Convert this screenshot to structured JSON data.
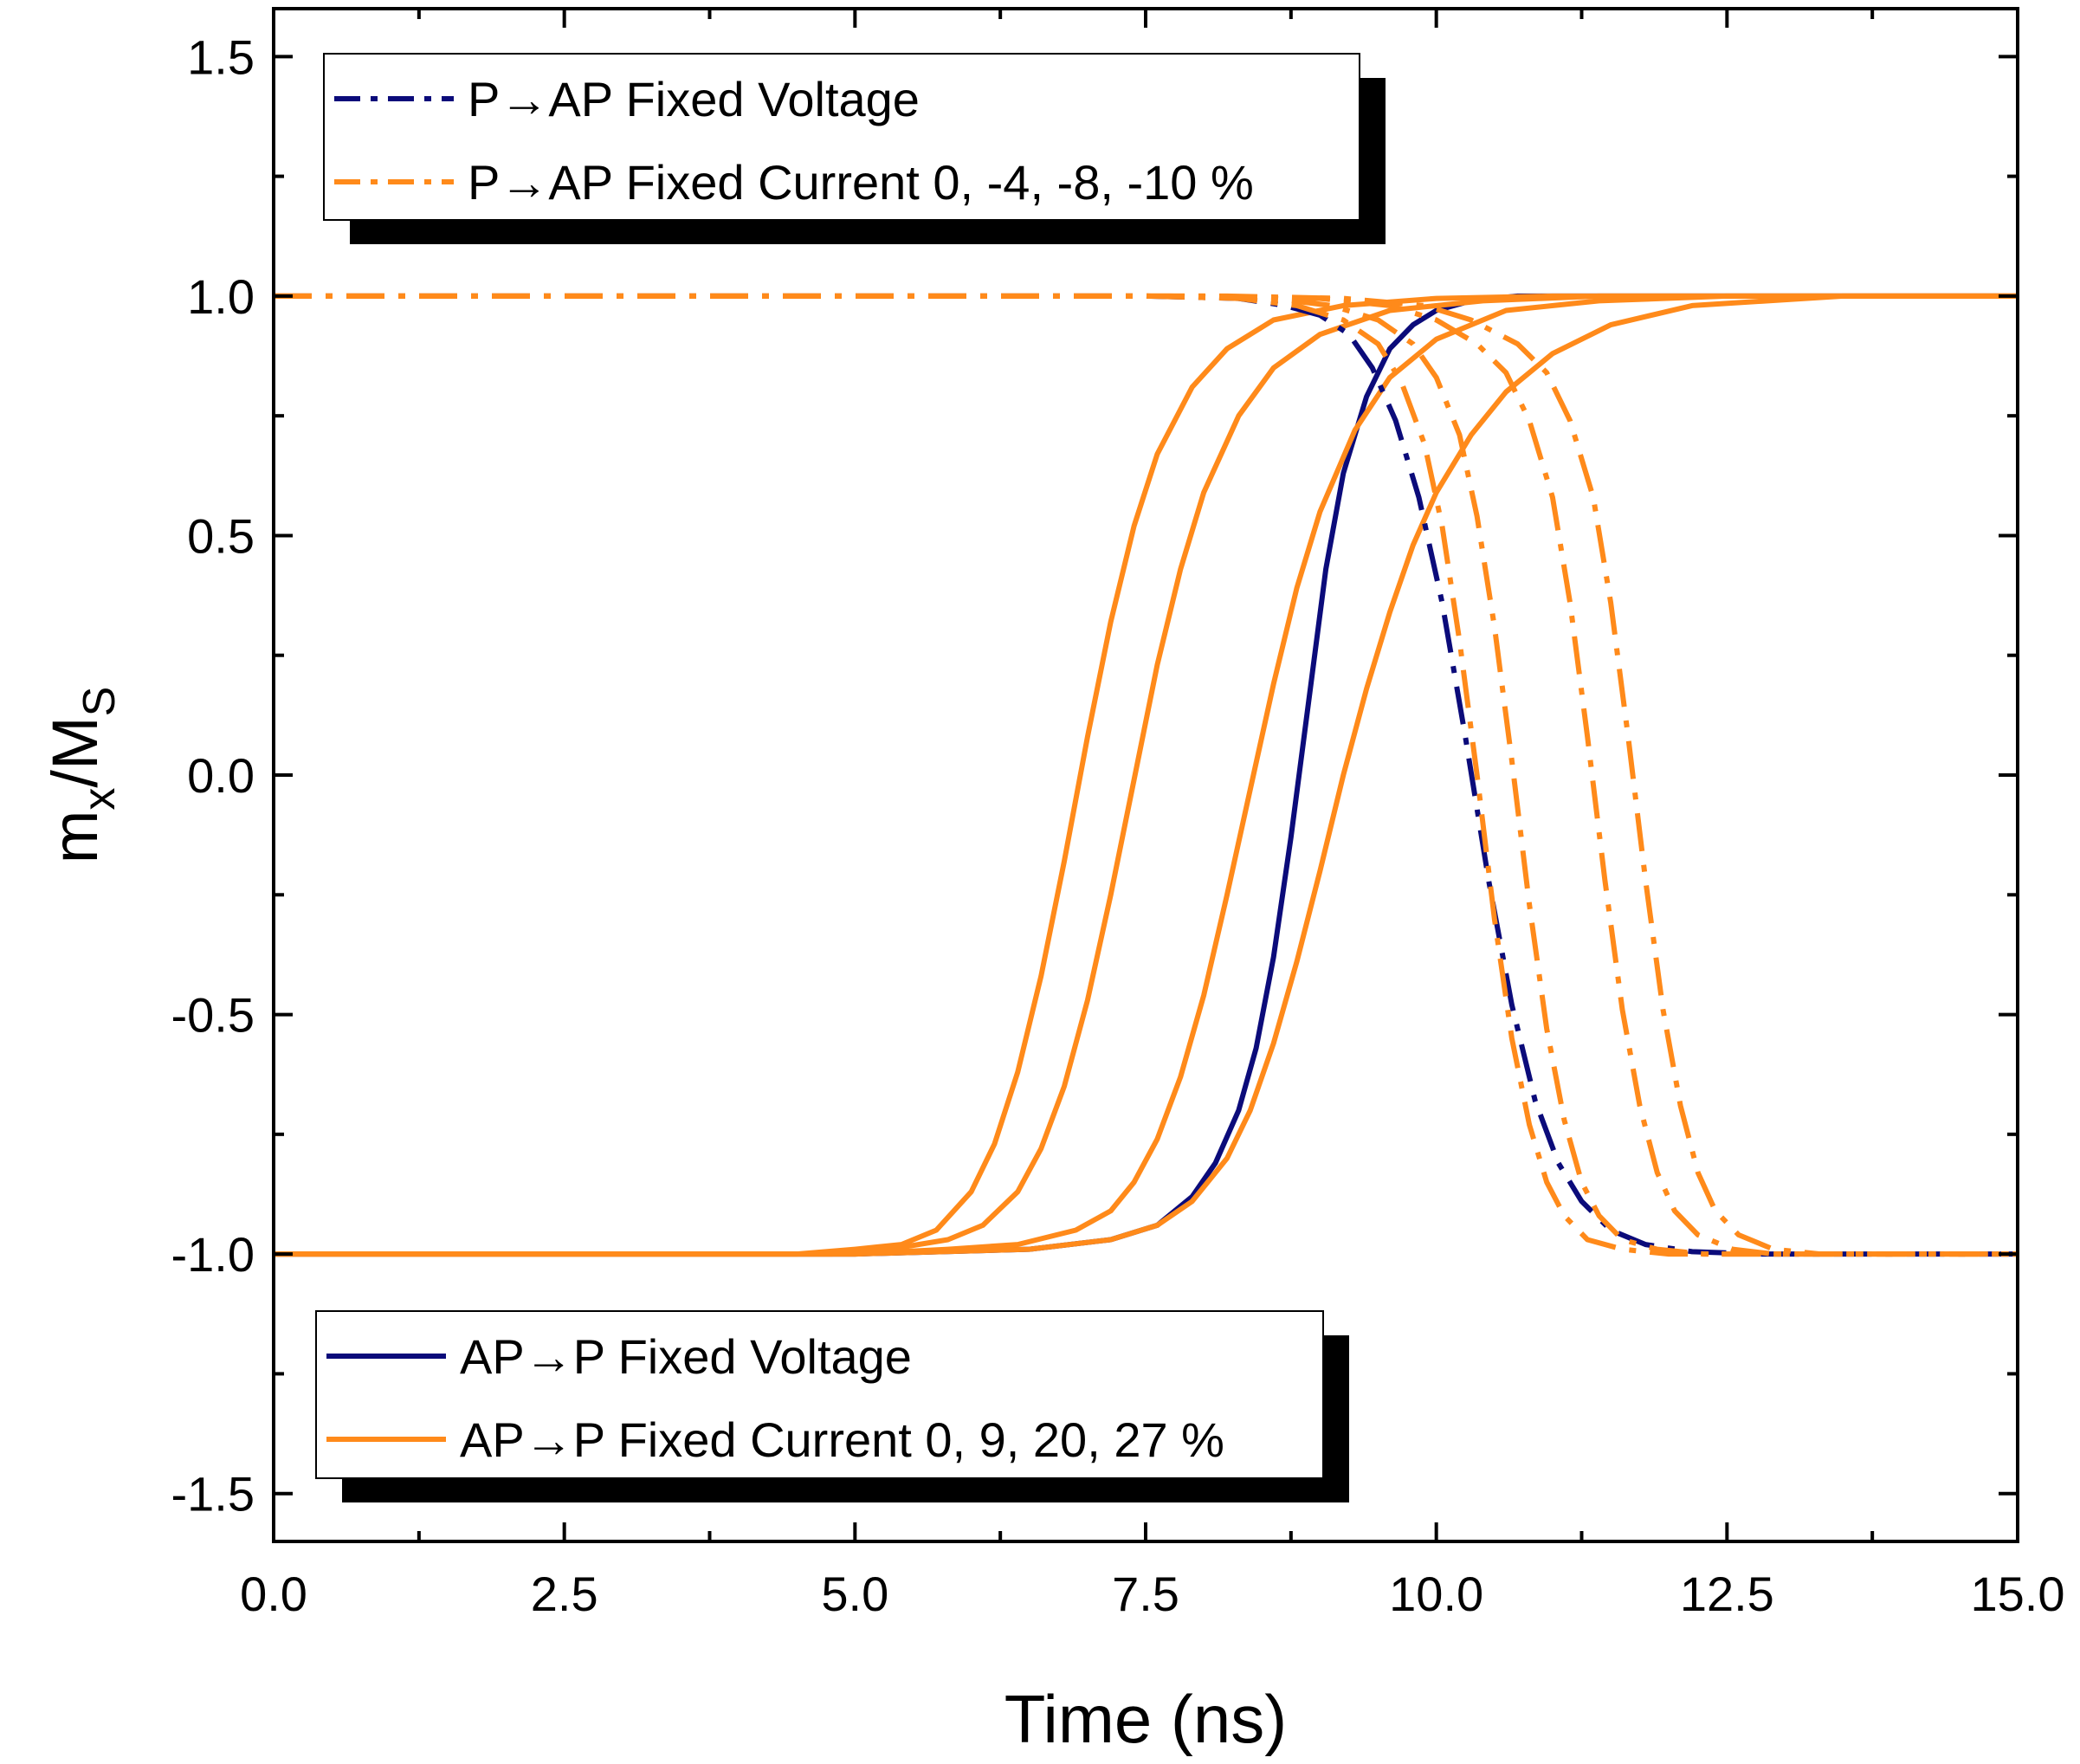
{
  "chart_data": {
    "type": "line",
    "title": "",
    "xlabel": "Time (ns)",
    "ylabel_main": "m",
    "ylabel_sub1": "x",
    "ylabel_mid": "/M",
    "ylabel_sub2": "S",
    "xlim": [
      0,
      15
    ],
    "ylim": [
      -1.6,
      1.6
    ],
    "xticks": [
      0.0,
      2.5,
      5.0,
      7.5,
      10.0,
      12.5,
      15.0
    ],
    "xtick_labels": [
      "0.0",
      "2.5",
      "5.0",
      "7.5",
      "10.0",
      "12.5",
      "15.0"
    ],
    "yticks": [
      -1.5,
      -1.0,
      -0.5,
      0.0,
      0.5,
      1.0,
      1.5
    ],
    "ytick_labels": [
      "-1.5",
      "-1.0",
      "-0.5",
      "0.0",
      "0.5",
      "1.0",
      "1.5"
    ],
    "grid": false,
    "colors": {
      "navy": "#0b0b7a",
      "orange": "#ff8a1a"
    },
    "legends": [
      {
        "placement": "top-left",
        "entries": [
          {
            "label": "P→AP Fixed Voltage",
            "color": "#0b0b7a",
            "style": "dashdot"
          },
          {
            "label": "P→AP Fixed Current 0, -4, -8, -10 %",
            "color": "#ff8a1a",
            "style": "dashdot"
          }
        ]
      },
      {
        "placement": "bottom-left",
        "entries": [
          {
            "label": "AP→P Fixed Voltage",
            "color": "#0b0b7a",
            "style": "solid"
          },
          {
            "label": "AP→P Fixed Current 0, 9, 20, 27 %",
            "color": "#ff8a1a",
            "style": "solid"
          }
        ]
      }
    ],
    "series": [
      {
        "name": "AP→P Fixed Voltage",
        "color": "#0b0b7a",
        "style": "solid",
        "x": [
          0,
          5.0,
          6.5,
          7.2,
          7.6,
          7.9,
          8.1,
          8.3,
          8.45,
          8.6,
          8.75,
          8.9,
          9.05,
          9.2,
          9.4,
          9.6,
          9.8,
          10.0,
          10.3,
          10.7,
          11.5,
          15.0
        ],
        "y": [
          -1.0,
          -1.0,
          -0.99,
          -0.97,
          -0.94,
          -0.88,
          -0.81,
          -0.7,
          -0.57,
          -0.38,
          -0.13,
          0.15,
          0.43,
          0.63,
          0.79,
          0.89,
          0.94,
          0.97,
          0.99,
          1.0,
          1.0,
          1.0
        ]
      },
      {
        "name": "AP→P Fixed Current 27 %",
        "color": "#ff8a1a",
        "style": "solid",
        "x": [
          0,
          4.5,
          5.0,
          5.4,
          5.7,
          6.0,
          6.2,
          6.4,
          6.6,
          6.8,
          7.0,
          7.2,
          7.4,
          7.6,
          7.9,
          8.2,
          8.6,
          9.2,
          10.0,
          11.0,
          15.0
        ],
        "y": [
          -1.0,
          -1.0,
          -0.99,
          -0.98,
          -0.95,
          -0.87,
          -0.77,
          -0.62,
          -0.42,
          -0.18,
          0.08,
          0.32,
          0.52,
          0.67,
          0.81,
          0.89,
          0.95,
          0.98,
          0.995,
          1.0,
          1.0
        ]
      },
      {
        "name": "AP→P Fixed Current 20 %",
        "color": "#ff8a1a",
        "style": "solid",
        "x": [
          0,
          4.8,
          5.3,
          5.8,
          6.1,
          6.4,
          6.6,
          6.8,
          7.0,
          7.2,
          7.4,
          7.6,
          7.8,
          8.0,
          8.3,
          8.6,
          9.0,
          9.6,
          10.4,
          11.4,
          15.0
        ],
        "y": [
          -1.0,
          -1.0,
          -0.99,
          -0.97,
          -0.94,
          -0.87,
          -0.78,
          -0.65,
          -0.47,
          -0.25,
          -0.01,
          0.23,
          0.43,
          0.59,
          0.75,
          0.85,
          0.92,
          0.97,
          0.99,
          1.0,
          1.0
        ]
      },
      {
        "name": "AP→P Fixed Current 9 %",
        "color": "#ff8a1a",
        "style": "solid",
        "x": [
          0,
          5.0,
          5.8,
          6.4,
          6.9,
          7.2,
          7.4,
          7.6,
          7.8,
          8.0,
          8.2,
          8.4,
          8.6,
          8.8,
          9.0,
          9.3,
          9.6,
          10.0,
          10.6,
          11.4,
          12.5,
          15.0
        ],
        "y": [
          -1.0,
          -1.0,
          -0.99,
          -0.98,
          -0.95,
          -0.91,
          -0.85,
          -0.76,
          -0.63,
          -0.46,
          -0.25,
          -0.03,
          0.19,
          0.39,
          0.55,
          0.72,
          0.83,
          0.91,
          0.97,
          0.99,
          1.0,
          1.0
        ]
      },
      {
        "name": "AP→P Fixed Current 0 %",
        "color": "#ff8a1a",
        "style": "solid",
        "x": [
          0,
          5.0,
          6.5,
          7.2,
          7.6,
          7.9,
          8.2,
          8.4,
          8.6,
          8.8,
          9.0,
          9.2,
          9.4,
          9.6,
          9.8,
          10.0,
          10.3,
          10.6,
          11.0,
          11.5,
          12.2,
          13.5,
          15.0
        ],
        "y": [
          -1.0,
          -1.0,
          -0.99,
          -0.97,
          -0.94,
          -0.89,
          -0.8,
          -0.7,
          -0.56,
          -0.39,
          -0.2,
          0.0,
          0.18,
          0.34,
          0.48,
          0.59,
          0.71,
          0.8,
          0.88,
          0.94,
          0.98,
          1.0,
          1.0
        ]
      },
      {
        "name": "P→AP Fixed Voltage",
        "color": "#0b0b7a",
        "style": "dashdot",
        "x": [
          0,
          7.5,
          8.3,
          8.7,
          9.0,
          9.25,
          9.45,
          9.65,
          9.85,
          10.05,
          10.25,
          10.45,
          10.65,
          10.85,
          11.05,
          11.25,
          11.5,
          11.8,
          12.2,
          12.8,
          15.0
        ],
        "y": [
          1.0,
          1.0,
          0.995,
          0.98,
          0.96,
          0.92,
          0.85,
          0.74,
          0.58,
          0.36,
          0.08,
          -0.22,
          -0.48,
          -0.68,
          -0.81,
          -0.89,
          -0.95,
          -0.98,
          -0.995,
          -1.0,
          -1.0
        ]
      },
      {
        "name": "P→AP Fixed Current 0 %",
        "color": "#ff8a1a",
        "style": "dashdot",
        "x": [
          0,
          7.5,
          8.3,
          8.8,
          9.2,
          9.5,
          9.7,
          9.9,
          10.05,
          10.2,
          10.35,
          10.5,
          10.65,
          10.8,
          10.95,
          11.1,
          11.3,
          11.6,
          12.0,
          12.6,
          15.0
        ],
        "y": [
          1.0,
          1.0,
          0.995,
          0.98,
          0.95,
          0.9,
          0.82,
          0.69,
          0.52,
          0.28,
          0.0,
          -0.3,
          -0.55,
          -0.73,
          -0.85,
          -0.92,
          -0.97,
          -0.99,
          -1.0,
          -1.0,
          -1.0
        ]
      },
      {
        "name": "P→AP Fixed Current -4 %",
        "color": "#ff8a1a",
        "style": "dashdot",
        "x": [
          0,
          7.7,
          8.6,
          9.1,
          9.5,
          9.8,
          10.0,
          10.2,
          10.35,
          10.5,
          10.65,
          10.8,
          10.95,
          11.1,
          11.25,
          11.4,
          11.6,
          11.9,
          12.3,
          12.9,
          15.0
        ],
        "y": [
          1.0,
          1.0,
          0.995,
          0.98,
          0.95,
          0.9,
          0.83,
          0.71,
          0.54,
          0.31,
          0.03,
          -0.27,
          -0.53,
          -0.72,
          -0.85,
          -0.92,
          -0.97,
          -0.99,
          -1.0,
          -1.0,
          -1.0
        ]
      },
      {
        "name": "P→AP Fixed Current -8 %",
        "color": "#ff8a1a",
        "style": "dashdot",
        "x": [
          0,
          8.0,
          9.0,
          9.6,
          10.0,
          10.35,
          10.6,
          10.8,
          11.0,
          11.15,
          11.3,
          11.45,
          11.6,
          11.75,
          11.9,
          12.05,
          12.25,
          12.55,
          12.9,
          13.5,
          15.0
        ],
        "y": [
          1.0,
          1.0,
          0.995,
          0.98,
          0.95,
          0.9,
          0.84,
          0.74,
          0.58,
          0.36,
          0.08,
          -0.22,
          -0.49,
          -0.69,
          -0.83,
          -0.91,
          -0.96,
          -0.99,
          -1.0,
          -1.0,
          -1.0
        ]
      },
      {
        "name": "P→AP Fixed Current -10 %",
        "color": "#ff8a1a",
        "style": "dashdot",
        "x": [
          0,
          8.2,
          9.2,
          9.9,
          10.3,
          10.7,
          10.95,
          11.15,
          11.35,
          11.5,
          11.65,
          11.8,
          11.95,
          12.1,
          12.25,
          12.4,
          12.6,
          12.9,
          13.3,
          13.9,
          15.0
        ],
        "y": [
          1.0,
          1.0,
          0.995,
          0.98,
          0.95,
          0.9,
          0.84,
          0.74,
          0.58,
          0.36,
          0.08,
          -0.22,
          -0.49,
          -0.69,
          -0.83,
          -0.91,
          -0.96,
          -0.99,
          -1.0,
          -1.0,
          -1.0
        ]
      }
    ]
  }
}
